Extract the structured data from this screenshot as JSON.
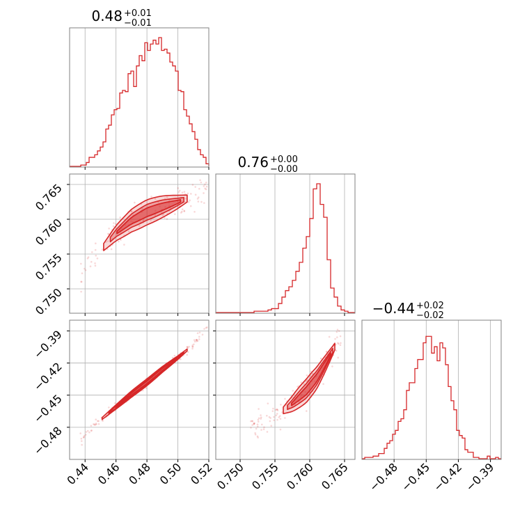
{
  "chart_data": {
    "type": "corner",
    "color": "#d62728",
    "grid": true,
    "panels": [
      {
        "id": "hist-p1",
        "kind": "histogram",
        "title": {
          "value": "0.48",
          "plus": "+0.01",
          "minus": "−0.01"
        },
        "xlim": [
          0.43,
          0.52
        ],
        "xticks": [
          0.44,
          0.46,
          0.48,
          0.5,
          0.52
        ],
        "bin_width": 0.0018,
        "bins": [
          [
            0.43,
            0.0
          ],
          [
            0.4318,
            0.0
          ],
          [
            0.4336,
            0.0
          ],
          [
            0.4354,
            0.0
          ],
          [
            0.4372,
            0.01
          ],
          [
            0.439,
            0.01
          ],
          [
            0.4408,
            0.03
          ],
          [
            0.4426,
            0.07
          ],
          [
            0.4444,
            0.07
          ],
          [
            0.4462,
            0.09
          ],
          [
            0.448,
            0.12
          ],
          [
            0.4498,
            0.15
          ],
          [
            0.4516,
            0.19
          ],
          [
            0.4534,
            0.29
          ],
          [
            0.4552,
            0.32
          ],
          [
            0.457,
            0.4
          ],
          [
            0.4588,
            0.44
          ],
          [
            0.4606,
            0.45
          ],
          [
            0.4624,
            0.57
          ],
          [
            0.4642,
            0.59
          ],
          [
            0.466,
            0.58
          ],
          [
            0.4678,
            0.72
          ],
          [
            0.4696,
            0.74
          ],
          [
            0.4714,
            0.62
          ],
          [
            0.4732,
            0.78
          ],
          [
            0.475,
            0.86
          ],
          [
            0.4768,
            0.82
          ],
          [
            0.4786,
            0.96
          ],
          [
            0.4804,
            0.9
          ],
          [
            0.4822,
            0.95
          ],
          [
            0.484,
            0.98
          ],
          [
            0.4858,
            0.95
          ],
          [
            0.4876,
            1.0
          ],
          [
            0.4894,
            0.9
          ],
          [
            0.4912,
            0.91
          ],
          [
            0.493,
            0.88
          ],
          [
            0.4948,
            0.81
          ],
          [
            0.4966,
            0.78
          ],
          [
            0.4984,
            0.74
          ],
          [
            0.5002,
            0.59
          ],
          [
            0.502,
            0.58
          ],
          [
            0.5038,
            0.44
          ],
          [
            0.5056,
            0.39
          ],
          [
            0.5074,
            0.33
          ],
          [
            0.5092,
            0.27
          ],
          [
            0.511,
            0.21
          ],
          [
            0.5128,
            0.13
          ],
          [
            0.5146,
            0.09
          ],
          [
            0.5164,
            0.07
          ],
          [
            0.5182,
            0.02
          ]
        ]
      },
      {
        "id": "hist-p2",
        "kind": "histogram",
        "title": {
          "value": "0.76",
          "plus": "+0.00",
          "minus": "−0.00"
        },
        "xlim": [
          0.7465,
          0.7665
        ],
        "xticks": [
          0.75,
          0.755,
          0.76,
          0.765
        ],
        "bin_width": 0.0005,
        "bins": [
          [
            0.7465,
            0.0
          ],
          [
            0.747,
            0.0
          ],
          [
            0.7475,
            0.0
          ],
          [
            0.748,
            0.0
          ],
          [
            0.7485,
            0.0
          ],
          [
            0.749,
            0.0
          ],
          [
            0.7495,
            0.0
          ],
          [
            0.75,
            0.0
          ],
          [
            0.7505,
            0.0
          ],
          [
            0.751,
            0.0
          ],
          [
            0.7515,
            0.0
          ],
          [
            0.752,
            0.01
          ],
          [
            0.7525,
            0.01
          ],
          [
            0.753,
            0.01
          ],
          [
            0.7535,
            0.01
          ],
          [
            0.754,
            0.02
          ],
          [
            0.7545,
            0.03
          ],
          [
            0.755,
            0.03
          ],
          [
            0.7555,
            0.07
          ],
          [
            0.756,
            0.12
          ],
          [
            0.7565,
            0.17
          ],
          [
            0.757,
            0.2
          ],
          [
            0.7575,
            0.25
          ],
          [
            0.758,
            0.32
          ],
          [
            0.7585,
            0.39
          ],
          [
            0.759,
            0.5
          ],
          [
            0.7595,
            0.59
          ],
          [
            0.76,
            0.73
          ],
          [
            0.7605,
            0.96
          ],
          [
            0.761,
            1.0
          ],
          [
            0.7615,
            0.84
          ],
          [
            0.762,
            0.74
          ],
          [
            0.7625,
            0.41
          ],
          [
            0.763,
            0.19
          ],
          [
            0.7635,
            0.12
          ],
          [
            0.764,
            0.05
          ],
          [
            0.7645,
            0.02
          ],
          [
            0.765,
            0.01
          ],
          [
            0.7655,
            0.0
          ],
          [
            0.766,
            0.0
          ]
        ]
      },
      {
        "id": "hist-p3",
        "kind": "histogram",
        "title": {
          "value": "−0.44",
          "plus": "+0.02",
          "minus": "−0.02"
        },
        "xlim": [
          -0.51,
          -0.38
        ],
        "xticks": [
          -0.48,
          -0.45,
          -0.42,
          -0.39
        ],
        "bin_width": 0.0026,
        "bins": [
          [
            -0.51,
            0.0
          ],
          [
            -0.5074,
            0.01
          ],
          [
            -0.5048,
            0.01
          ],
          [
            -0.5022,
            0.01
          ],
          [
            -0.4996,
            0.02
          ],
          [
            -0.497,
            0.02
          ],
          [
            -0.4944,
            0.04
          ],
          [
            -0.4918,
            0.04
          ],
          [
            -0.4892,
            0.08
          ],
          [
            -0.4866,
            0.12
          ],
          [
            -0.484,
            0.14
          ],
          [
            -0.4814,
            0.19
          ],
          [
            -0.4788,
            0.22
          ],
          [
            -0.4762,
            0.29
          ],
          [
            -0.4736,
            0.31
          ],
          [
            -0.471,
            0.38
          ],
          [
            -0.4684,
            0.53
          ],
          [
            -0.4658,
            0.59
          ],
          [
            -0.4632,
            0.59
          ],
          [
            -0.4606,
            0.7
          ],
          [
            -0.458,
            0.77
          ],
          [
            -0.4554,
            0.77
          ],
          [
            -0.4528,
            0.9
          ],
          [
            -0.4502,
            0.95
          ],
          [
            -0.4476,
            0.95
          ],
          [
            -0.445,
            0.82
          ],
          [
            -0.4424,
            0.87
          ],
          [
            -0.4398,
            0.76
          ],
          [
            -0.4372,
            0.9
          ],
          [
            -0.4346,
            0.86
          ],
          [
            -0.432,
            0.73
          ],
          [
            -0.4294,
            0.56
          ],
          [
            -0.4268,
            0.45
          ],
          [
            -0.4242,
            0.38
          ],
          [
            -0.4216,
            0.22
          ],
          [
            -0.419,
            0.18
          ],
          [
            -0.4164,
            0.16
          ],
          [
            -0.4138,
            0.07
          ],
          [
            -0.4112,
            0.05
          ],
          [
            -0.4086,
            0.05
          ],
          [
            -0.406,
            0.01
          ],
          [
            -0.4034,
            0.01
          ],
          [
            -0.4008,
            0.0
          ],
          [
            -0.3982,
            0.0
          ],
          [
            -0.3956,
            0.0
          ],
          [
            -0.393,
            0.02
          ],
          [
            -0.3904,
            0.0
          ],
          [
            -0.3878,
            0.0
          ],
          [
            -0.3852,
            0.01
          ],
          [
            -0.3826,
            0.0
          ]
        ]
      },
      {
        "id": "scatter-p1-p2",
        "kind": "2d-density",
        "xlim": [
          0.43,
          0.52
        ],
        "ylim": [
          0.7465,
          0.7665
        ],
        "yticks": [
          0.75,
          0.755,
          0.76,
          0.765
        ],
        "ridge": [
          [
            0.437,
            0.7512
          ],
          [
            0.45,
            0.7555
          ],
          [
            0.46,
            0.758
          ],
          [
            0.47,
            0.7598
          ],
          [
            0.48,
            0.761
          ],
          [
            0.49,
            0.7618
          ],
          [
            0.5,
            0.7625
          ],
          [
            0.51,
            0.7633
          ],
          [
            0.519,
            0.7652
          ]
        ],
        "core": [
          0.452,
          0.506
        ],
        "spread": 0.0009
      },
      {
        "id": "scatter-p1-p3",
        "kind": "2d-density",
        "xlim": [
          0.43,
          0.52
        ],
        "ylim": [
          -0.51,
          -0.38
        ],
        "yticks": [
          -0.48,
          -0.45,
          -0.42,
          -0.39
        ],
        "ridge": [
          [
            0.437,
            -0.491
          ],
          [
            0.45,
            -0.473
          ],
          [
            0.46,
            -0.461
          ],
          [
            0.47,
            -0.449
          ],
          [
            0.48,
            -0.438
          ],
          [
            0.49,
            -0.426
          ],
          [
            0.5,
            -0.415
          ],
          [
            0.51,
            -0.403
          ],
          [
            0.519,
            -0.386
          ]
        ],
        "core": [
          0.451,
          0.506
        ],
        "spread": 0.0016
      },
      {
        "id": "scatter-p2-p3",
        "kind": "2d-density",
        "xlim": [
          0.7465,
          0.7665
        ],
        "ylim": [
          -0.51,
          -0.38
        ],
        "ridge": [
          [
            0.7515,
            -0.481
          ],
          [
            0.755,
            -0.47
          ],
          [
            0.7575,
            -0.458
          ],
          [
            0.7595,
            -0.446
          ],
          [
            0.761,
            -0.434
          ],
          [
            0.7622,
            -0.421
          ],
          [
            0.7635,
            -0.406
          ],
          [
            0.7648,
            -0.388
          ]
        ],
        "core": [
          0.7562,
          0.7636
        ],
        "spread": 0.0055
      }
    ]
  }
}
